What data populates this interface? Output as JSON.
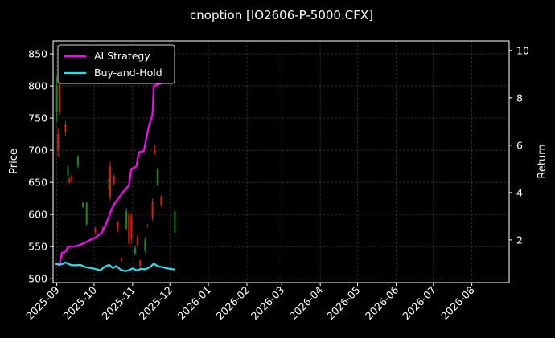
{
  "chart_data": {
    "type": "line",
    "title": "cnoption [IO2606-P-5000.CFX]",
    "ylabel_left": "Price",
    "ylabel_right": "Return",
    "x_range": [
      "2025-08-29",
      "2026-08-31"
    ],
    "x_ticks": [
      "2025-09",
      "2025-10",
      "2025-11",
      "2025-12",
      "2026-01",
      "2026-02",
      "2026-03",
      "2026-04",
      "2026-05",
      "2026-06",
      "2026-07",
      "2026-08"
    ],
    "ylim_left": [
      494,
      870
    ],
    "yticks_left": [
      500,
      550,
      600,
      650,
      700,
      750,
      800,
      850
    ],
    "ylim_right": [
      0.2,
      10.4
    ],
    "yticks_right": [
      2,
      4,
      6,
      8,
      10
    ],
    "grid": true,
    "legend_position": "top-left",
    "legend": [
      {
        "label": "AI Strategy",
        "color": "#ff00ff"
      },
      {
        "label": "Buy-and-Hold",
        "color": "#22e5f0"
      }
    ],
    "candles": [
      {
        "date": "2025-09-01",
        "open": 760,
        "close": 800,
        "high": 815,
        "low": 745
      },
      {
        "date": "2025-09-02",
        "open": 725,
        "close": 700,
        "high": 735,
        "low": 690
      },
      {
        "date": "2025-09-03",
        "open": 810,
        "close": 760,
        "high": 815,
        "low": 755
      },
      {
        "date": "2025-09-08",
        "open": 740,
        "close": 728,
        "high": 745,
        "low": 722
      },
      {
        "date": "2025-09-10",
        "open": 660,
        "close": 675,
        "high": 677,
        "low": 655
      },
      {
        "date": "2025-09-11",
        "open": 655,
        "close": 650,
        "high": 658,
        "low": 647
      },
      {
        "date": "2025-09-13",
        "open": 660,
        "close": 653,
        "high": 662,
        "low": 650
      },
      {
        "date": "2025-09-18",
        "open": 675,
        "close": 690,
        "high": 692,
        "low": 672
      },
      {
        "date": "2025-09-22",
        "open": 612,
        "close": 618,
        "high": 620,
        "low": 610
      },
      {
        "date": "2025-09-25",
        "open": 585,
        "close": 618,
        "high": 620,
        "low": 582
      },
      {
        "date": "2025-10-02",
        "open": 578,
        "close": 573,
        "high": 580,
        "low": 570
      },
      {
        "date": "2025-10-08",
        "open": 580,
        "close": 575,
        "high": 582,
        "low": 572
      },
      {
        "date": "2025-10-13",
        "open": 640,
        "close": 657,
        "high": 660,
        "low": 634
      },
      {
        "date": "2025-10-14",
        "open": 675,
        "close": 628,
        "high": 682,
        "low": 622
      },
      {
        "date": "2025-10-17",
        "open": 660,
        "close": 648,
        "high": 662,
        "low": 645
      },
      {
        "date": "2025-10-20",
        "open": 588,
        "close": 578,
        "high": 590,
        "low": 573
      },
      {
        "date": "2025-10-23",
        "open": 532,
        "close": 528,
        "high": 534,
        "low": 526
      },
      {
        "date": "2025-10-27",
        "open": 578,
        "close": 605,
        "high": 610,
        "low": 575
      },
      {
        "date": "2025-10-29",
        "open": 600,
        "close": 555,
        "high": 605,
        "low": 550
      },
      {
        "date": "2025-10-31",
        "open": 598,
        "close": 562,
        "high": 602,
        "low": 555
      },
      {
        "date": "2025-11-03",
        "open": 540,
        "close": 548,
        "high": 552,
        "low": 536
      },
      {
        "date": "2025-11-05",
        "open": 565,
        "close": 552,
        "high": 570,
        "low": 548
      },
      {
        "date": "2025-11-07",
        "open": 528,
        "close": 520,
        "high": 530,
        "low": 515
      },
      {
        "date": "2025-11-11",
        "open": 545,
        "close": 560,
        "high": 565,
        "low": 540
      },
      {
        "date": "2025-11-13",
        "open": 583,
        "close": 582,
        "high": 585,
        "low": 580
      },
      {
        "date": "2025-11-17",
        "open": 620,
        "close": 595,
        "high": 625,
        "low": 590
      },
      {
        "date": "2025-11-19",
        "open": 700,
        "close": 697,
        "high": 708,
        "low": 693
      },
      {
        "date": "2025-11-21",
        "open": 645,
        "close": 672,
        "high": 672,
        "low": 645
      },
      {
        "date": "2025-11-24",
        "open": 628,
        "close": 615,
        "high": 630,
        "low": 612
      },
      {
        "date": "2025-12-05",
        "open": 572,
        "close": 605,
        "high": 610,
        "low": 565
      }
    ],
    "series": [
      {
        "name": "AI Strategy",
        "color": "#ff00ff",
        "axis": "right",
        "points": [
          {
            "x": "2025-08-31",
            "y": 1.0
          },
          {
            "x": "2025-09-03",
            "y": 1.0
          },
          {
            "x": "2025-09-04",
            "y": 1.2
          },
          {
            "x": "2025-09-05",
            "y": 1.45
          },
          {
            "x": "2025-09-08",
            "y": 1.5
          },
          {
            "x": "2025-09-10",
            "y": 1.7
          },
          {
            "x": "2025-09-15",
            "y": 1.73
          },
          {
            "x": "2025-09-19",
            "y": 1.78
          },
          {
            "x": "2025-09-24",
            "y": 1.9
          },
          {
            "x": "2025-09-28",
            "y": 2.0
          },
          {
            "x": "2025-10-02",
            "y": 2.1
          },
          {
            "x": "2025-10-07",
            "y": 2.3
          },
          {
            "x": "2025-10-10",
            "y": 2.6
          },
          {
            "x": "2025-10-13",
            "y": 3.0
          },
          {
            "x": "2025-10-15",
            "y": 3.3
          },
          {
            "x": "2025-10-17",
            "y": 3.5
          },
          {
            "x": "2025-10-21",
            "y": 3.8
          },
          {
            "x": "2025-10-24",
            "y": 4.0
          },
          {
            "x": "2025-10-29",
            "y": 4.3
          },
          {
            "x": "2025-10-31",
            "y": 5.0
          },
          {
            "x": "2025-11-04",
            "y": 5.1
          },
          {
            "x": "2025-11-06",
            "y": 5.7
          },
          {
            "x": "2025-11-10",
            "y": 5.75
          },
          {
            "x": "2025-11-12",
            "y": 6.3
          },
          {
            "x": "2025-11-14",
            "y": 6.8
          },
          {
            "x": "2025-11-17",
            "y": 7.3
          },
          {
            "x": "2025-11-18",
            "y": 8.5
          },
          {
            "x": "2025-11-24",
            "y": 8.6
          },
          {
            "x": "2025-11-28",
            "y": 9.0
          },
          {
            "x": "2025-12-02",
            "y": 9.4
          },
          {
            "x": "2025-12-05",
            "y": 10.0
          }
        ]
      },
      {
        "name": "Buy-and-Hold",
        "color": "#22e5f0",
        "axis": "right",
        "points": [
          {
            "x": "2025-08-31",
            "y": 1.0
          },
          {
            "x": "2025-09-03",
            "y": 0.95
          },
          {
            "x": "2025-09-06",
            "y": 1.0
          },
          {
            "x": "2025-09-08",
            "y": 1.05
          },
          {
            "x": "2025-09-12",
            "y": 0.95
          },
          {
            "x": "2025-09-16",
            "y": 0.93
          },
          {
            "x": "2025-09-20",
            "y": 0.95
          },
          {
            "x": "2025-09-24",
            "y": 0.85
          },
          {
            "x": "2025-09-28",
            "y": 0.82
          },
          {
            "x": "2025-10-02",
            "y": 0.78
          },
          {
            "x": "2025-10-06",
            "y": 0.72
          },
          {
            "x": "2025-10-09",
            "y": 0.85
          },
          {
            "x": "2025-10-13",
            "y": 0.95
          },
          {
            "x": "2025-10-16",
            "y": 0.82
          },
          {
            "x": "2025-10-19",
            "y": 0.9
          },
          {
            "x": "2025-10-22",
            "y": 0.76
          },
          {
            "x": "2025-10-26",
            "y": 0.68
          },
          {
            "x": "2025-10-29",
            "y": 0.72
          },
          {
            "x": "2025-11-01",
            "y": 0.8
          },
          {
            "x": "2025-11-04",
            "y": 0.72
          },
          {
            "x": "2025-11-08",
            "y": 0.78
          },
          {
            "x": "2025-11-11",
            "y": 0.76
          },
          {
            "x": "2025-11-15",
            "y": 0.85
          },
          {
            "x": "2025-11-18",
            "y": 1.0
          },
          {
            "x": "2025-11-21",
            "y": 0.9
          },
          {
            "x": "2025-11-25",
            "y": 0.85
          },
          {
            "x": "2025-11-29",
            "y": 0.8
          },
          {
            "x": "2025-12-05",
            "y": 0.75
          }
        ]
      }
    ],
    "colors": {
      "background": "#000000",
      "grid": "#3a3a3a",
      "candle_up": "#1b8c1b",
      "candle_down": "#e11a0c"
    }
  }
}
